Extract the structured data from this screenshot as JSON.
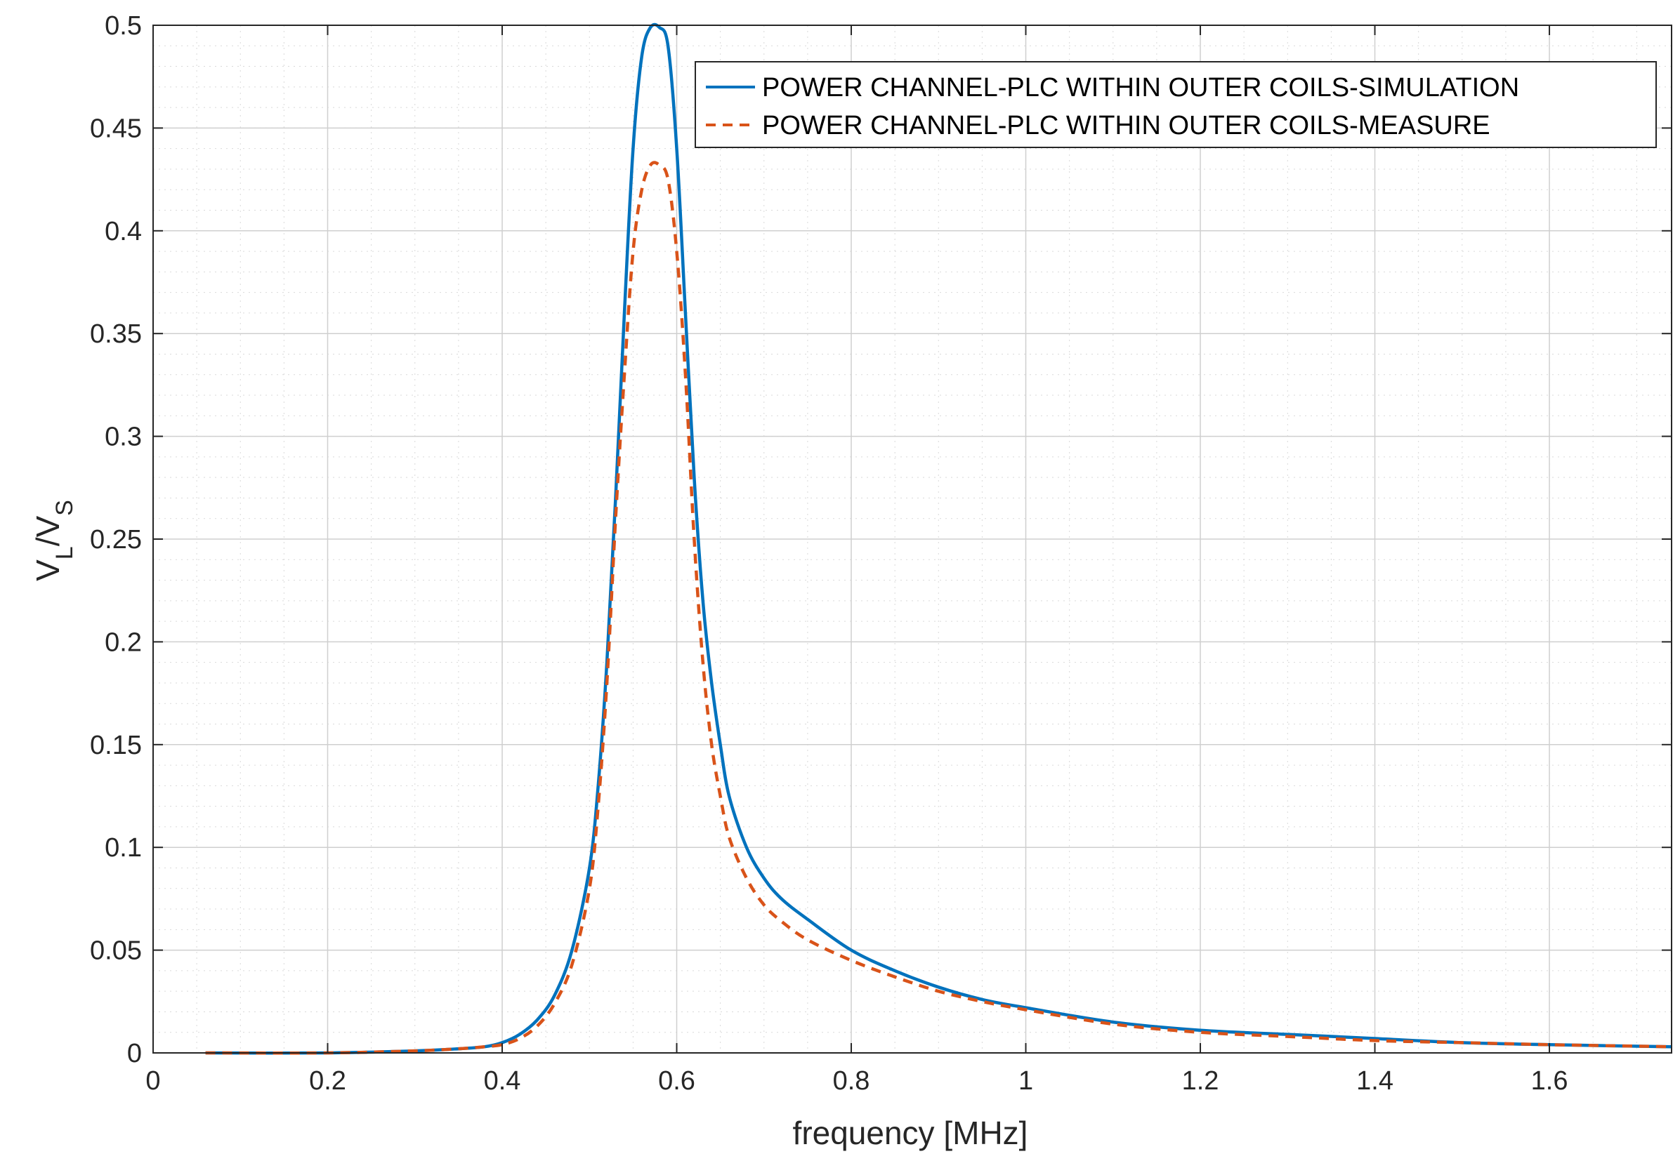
{
  "chart_data": {
    "type": "line",
    "xlabel": "frequency [MHz]",
    "ylabel": {
      "v1": "V",
      "sub1": "L",
      "slash": "/V",
      "sub2": "S"
    },
    "xlim": [
      0,
      1.74
    ],
    "ylim": [
      0,
      0.5
    ],
    "xticks": [
      0,
      0.2,
      0.4,
      0.6,
      0.8,
      1,
      1.2,
      1.4,
      1.6
    ],
    "xtick_labels": [
      "0",
      "0.2",
      "0.4",
      "0.6",
      "0.8",
      "1",
      "1.2",
      "1.4",
      "1.6"
    ],
    "yticks": [
      0,
      0.05,
      0.1,
      0.15,
      0.2,
      0.25,
      0.3,
      0.35,
      0.4,
      0.45,
      0.5
    ],
    "ytick_labels": [
      "0",
      "0.05",
      "0.1",
      "0.15",
      "0.2",
      "0.25",
      "0.3",
      "0.35",
      "0.4",
      "0.45",
      "0.5"
    ],
    "grid": true,
    "minor_grid": true,
    "legend_position": "top-right",
    "series": [
      {
        "name": "POWER CHANNEL-PLC WITHIN OUTER COILS-SIMULATION",
        "color": "#0072bd",
        "style": "solid",
        "x": [
          0.06,
          0.2,
          0.3,
          0.35,
          0.38,
          0.4,
          0.42,
          0.44,
          0.46,
          0.48,
          0.5,
          0.51,
          0.52,
          0.53,
          0.54,
          0.55,
          0.56,
          0.57,
          0.58,
          0.59,
          0.6,
          0.61,
          0.62,
          0.63,
          0.64,
          0.65,
          0.66,
          0.68,
          0.7,
          0.72,
          0.75,
          0.8,
          0.85,
          0.9,
          0.95,
          1.0,
          1.1,
          1.2,
          1.3,
          1.4,
          1.5,
          1.6,
          1.74
        ],
        "y": [
          0.0,
          0.0,
          0.001,
          0.002,
          0.003,
          0.005,
          0.009,
          0.016,
          0.028,
          0.05,
          0.09,
          0.13,
          0.19,
          0.27,
          0.36,
          0.44,
          0.485,
          0.499,
          0.499,
          0.49,
          0.44,
          0.36,
          0.28,
          0.22,
          0.18,
          0.15,
          0.125,
          0.1,
          0.085,
          0.075,
          0.065,
          0.05,
          0.04,
          0.032,
          0.026,
          0.022,
          0.015,
          0.011,
          0.009,
          0.007,
          0.005,
          0.004,
          0.003
        ]
      },
      {
        "name": "POWER CHANNEL-PLC WITHIN OUTER COILS-MEASURE",
        "color": "#d95319",
        "style": "dashed",
        "x": [
          0.06,
          0.2,
          0.3,
          0.35,
          0.38,
          0.4,
          0.42,
          0.44,
          0.46,
          0.48,
          0.5,
          0.51,
          0.52,
          0.53,
          0.54,
          0.55,
          0.56,
          0.57,
          0.58,
          0.59,
          0.6,
          0.61,
          0.62,
          0.63,
          0.64,
          0.65,
          0.66,
          0.68,
          0.7,
          0.72,
          0.75,
          0.8,
          0.85,
          0.9,
          0.95,
          1.0,
          1.1,
          1.2,
          1.3,
          1.4,
          1.5,
          1.6,
          1.74
        ],
        "y": [
          0.0,
          0.0,
          0.001,
          0.002,
          0.003,
          0.004,
          0.007,
          0.013,
          0.024,
          0.043,
          0.08,
          0.12,
          0.18,
          0.26,
          0.33,
          0.39,
          0.42,
          0.432,
          0.432,
          0.425,
          0.39,
          0.33,
          0.25,
          0.19,
          0.15,
          0.125,
          0.105,
          0.085,
          0.072,
          0.064,
          0.055,
          0.045,
          0.037,
          0.03,
          0.025,
          0.021,
          0.014,
          0.01,
          0.008,
          0.006,
          0.005,
          0.004,
          0.003
        ]
      }
    ]
  }
}
